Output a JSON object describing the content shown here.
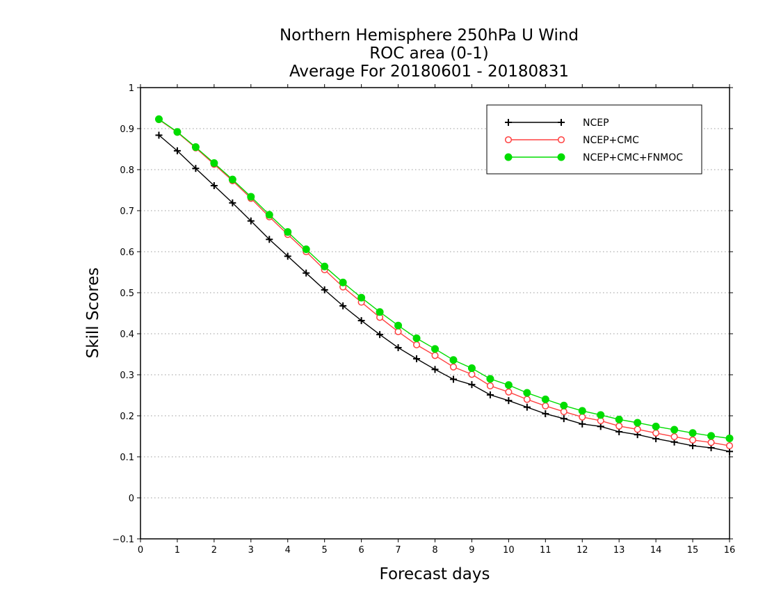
{
  "chart_data": {
    "type": "line",
    "title": [
      "Northern Hemisphere 250hPa U Wind",
      "ROC area (0-1)",
      "Average For 20180601 - 20180831"
    ],
    "xlabel": "Forecast days",
    "ylabel": "Skill Scores",
    "xlim": [
      0,
      16
    ],
    "ylim": [
      -0.1,
      1
    ],
    "xticks": [
      0,
      1,
      2,
      3,
      4,
      5,
      6,
      7,
      8,
      9,
      10,
      11,
      12,
      13,
      14,
      15,
      16
    ],
    "yticks": [
      -0.1,
      0,
      0.1,
      0.2,
      0.3,
      0.4,
      0.5,
      0.6,
      0.7,
      0.8,
      0.9,
      1
    ],
    "ytick_labels": [
      "−0.1",
      "0",
      "0.1",
      "0.2",
      "0.3",
      "0.4",
      "0.5",
      "0.6",
      "0.7",
      "0.8",
      "0.9",
      "1"
    ],
    "grid": "horizontal-dotted",
    "legend_position": "top-right",
    "x": [
      0.5,
      1,
      1.5,
      2,
      2.5,
      3,
      3.5,
      4,
      4.5,
      5,
      5.5,
      6,
      6.5,
      7,
      7.5,
      8,
      8.5,
      9,
      9.5,
      10,
      10.5,
      11,
      11.5,
      12,
      12.5,
      13,
      13.5,
      14,
      14.5,
      15,
      15.5,
      16
    ],
    "series": [
      {
        "name": "NCEP",
        "color": "#000000",
        "marker": "plus",
        "values": [
          0.884,
          0.846,
          0.803,
          0.761,
          0.719,
          0.675,
          0.63,
          0.589,
          0.548,
          0.507,
          0.468,
          0.432,
          0.398,
          0.366,
          0.339,
          0.313,
          0.289,
          0.276,
          0.251,
          0.237,
          0.221,
          0.205,
          0.193,
          0.18,
          0.174,
          0.161,
          0.154,
          0.144,
          0.136,
          0.127,
          0.122,
          0.113
        ]
      },
      {
        "name": "NCEP+CMC",
        "color": "#ff4040",
        "marker": "open-circle",
        "values": [
          0.922,
          0.891,
          0.853,
          0.813,
          0.773,
          0.73,
          0.685,
          0.642,
          0.6,
          0.556,
          0.514,
          0.477,
          0.44,
          0.405,
          0.373,
          0.347,
          0.319,
          0.301,
          0.273,
          0.258,
          0.24,
          0.224,
          0.21,
          0.197,
          0.188,
          0.175,
          0.167,
          0.158,
          0.149,
          0.141,
          0.135,
          0.127
        ]
      },
      {
        "name": "NCEP+CMC+FNMOC",
        "color": "#00dd00",
        "marker": "filled-circle",
        "values": [
          0.923,
          0.892,
          0.855,
          0.816,
          0.776,
          0.734,
          0.69,
          0.648,
          0.606,
          0.564,
          0.525,
          0.488,
          0.453,
          0.42,
          0.389,
          0.363,
          0.336,
          0.316,
          0.29,
          0.275,
          0.256,
          0.24,
          0.225,
          0.212,
          0.202,
          0.191,
          0.183,
          0.174,
          0.166,
          0.158,
          0.151,
          0.145
        ]
      }
    ]
  }
}
